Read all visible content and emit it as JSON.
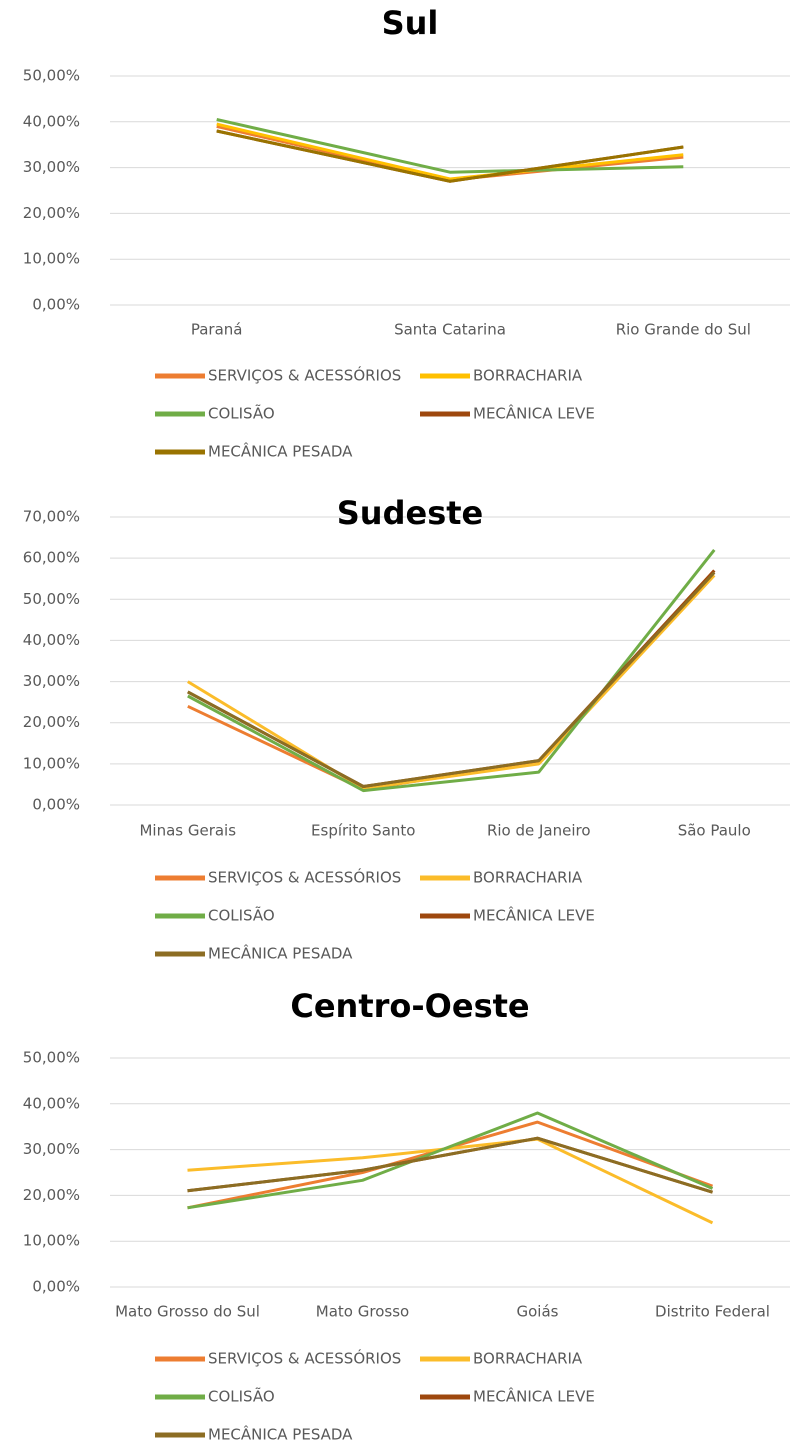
{
  "chart_data": [
    {
      "type": "line",
      "title": "Sul",
      "categories": [
        "Paraná",
        "Santa Catarina",
        "Rio Grande do Sul"
      ],
      "ylim": [
        0,
        50
      ],
      "yticks": [
        {
          "value": 0,
          "label": "0,00%"
        },
        {
          "value": 10,
          "label": "10,00%"
        },
        {
          "value": 20,
          "label": "20,00%"
        },
        {
          "value": 30,
          "label": "30,00%"
        },
        {
          "value": 40,
          "label": "40,00%"
        },
        {
          "value": 50,
          "label": "50,00%"
        }
      ],
      "grid": true,
      "series": [
        {
          "name": "SERVIÇOS & ACESSÓRIOS",
          "color": "#ed7d31",
          "values": [
            39,
            27.3,
            32.3
          ]
        },
        {
          "name": "BORRACHARIA",
          "color": "#ffc000",
          "values": [
            39.5,
            27.5,
            32.8
          ]
        },
        {
          "name": "COLISÃO",
          "color": "#70ad47",
          "values": [
            40.5,
            29,
            30.2
          ]
        },
        {
          "name": "MECÂNICA LEVE",
          "color": "#9e480e",
          "values": [
            38,
            27,
            34.5
          ]
        },
        {
          "name": "MECÂNICA PESADA",
          "color": "#997300",
          "values": [
            38,
            27,
            34.5
          ]
        }
      ]
    },
    {
      "type": "line",
      "title": "Sudeste",
      "categories": [
        "Minas Gerais",
        "Espírito Santo",
        "Rio de Janeiro",
        "São Paulo"
      ],
      "ylim": [
        0,
        70
      ],
      "yticks": [
        {
          "value": 0,
          "label": "0,00%"
        },
        {
          "value": 10,
          "label": "10,00%"
        },
        {
          "value": 20,
          "label": "20,00%"
        },
        {
          "value": 30,
          "label": "30,00%"
        },
        {
          "value": 40,
          "label": "40,00%"
        },
        {
          "value": 50,
          "label": "50,00%"
        },
        {
          "value": 60,
          "label": "60,00%"
        },
        {
          "value": 70,
          "label": "70,00%"
        }
      ],
      "grid": true,
      "series": [
        {
          "name": "SERVIÇOS & ACESSÓRIOS",
          "color": "#ed7d31",
          "values": [
            24,
            3.8,
            10.5,
            57
          ]
        },
        {
          "name": "BORRACHARIA",
          "color": "#fbbc2a",
          "values": [
            30,
            4,
            10,
            55.8
          ]
        },
        {
          "name": "COLISÃO",
          "color": "#70ad47",
          "values": [
            26.5,
            3.5,
            8,
            62
          ]
        },
        {
          "name": "MECÂNICA LEVE",
          "color": "#9e480e",
          "values": [
            27.5,
            4.5,
            10.8,
            57
          ]
        },
        {
          "name": "MECÂNICA PESADA",
          "color": "#8c6d23",
          "values": [
            27.5,
            4.5,
            10.8,
            56.5
          ]
        }
      ]
    },
    {
      "type": "line",
      "title": "Centro-Oeste",
      "categories": [
        "Mato Grosso do Sul",
        "Mato Grosso",
        "Goiás",
        "Distrito Federal"
      ],
      "ylim": [
        0,
        50
      ],
      "yticks": [
        {
          "value": 0,
          "label": "0,00%"
        },
        {
          "value": 10,
          "label": "10,00%"
        },
        {
          "value": 20,
          "label": "20,00%"
        },
        {
          "value": 30,
          "label": "30,00%"
        },
        {
          "value": 40,
          "label": "40,00%"
        },
        {
          "value": 50,
          "label": "50,00%"
        }
      ],
      "grid": true,
      "series": [
        {
          "name": "SERVIÇOS & ACESSÓRIOS",
          "color": "#ed7d31",
          "values": [
            17.3,
            25,
            36,
            22
          ]
        },
        {
          "name": "BORRACHARIA",
          "color": "#fbbc2a",
          "values": [
            25.5,
            28.2,
            32.3,
            14
          ]
        },
        {
          "name": "COLISÃO",
          "color": "#70ad47",
          "values": [
            17.3,
            23.3,
            38,
            21.5
          ]
        },
        {
          "name": "MECÂNICA LEVE",
          "color": "#9e480e",
          "values": [
            21,
            25.5,
            32.5,
            20.7
          ]
        },
        {
          "name": "MECÂNICA PESADA",
          "color": "#8c6d23",
          "values": [
            21,
            25.5,
            32.5,
            20.7
          ]
        }
      ]
    }
  ]
}
